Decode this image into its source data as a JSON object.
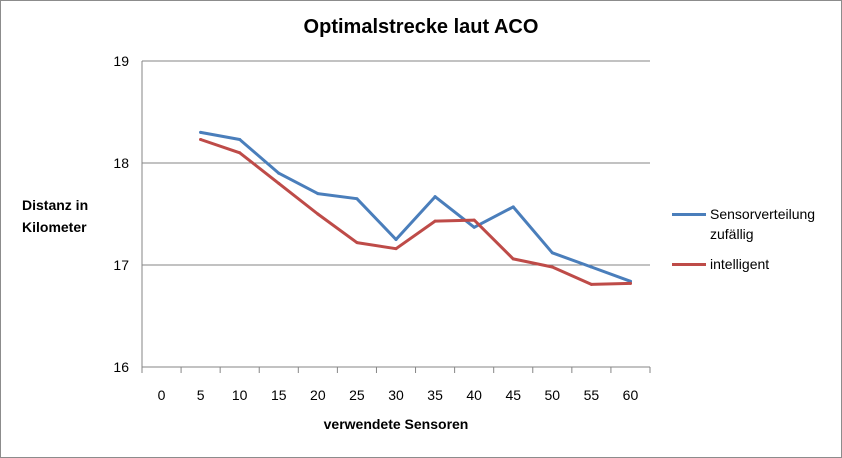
{
  "chart_data": {
    "type": "line",
    "title": "Optimalstrecke laut ACO",
    "xlabel": "verwendete Sensoren",
    "ylabel": "Distanz in Kilometer",
    "categories": [
      "0",
      "5",
      "10",
      "15",
      "20",
      "25",
      "30",
      "35",
      "40",
      "45",
      "50",
      "55",
      "60"
    ],
    "y_ticks": [
      "16",
      "17",
      "18",
      "19"
    ],
    "ylim": [
      16,
      19
    ],
    "grid": "horizontal",
    "legend_position": "right",
    "series": [
      {
        "name": "Sensorverteilung zufällig",
        "color": "#4a7ebb",
        "values": [
          null,
          18.3,
          18.23,
          17.9,
          17.7,
          17.65,
          17.25,
          17.67,
          17.37,
          17.57,
          17.12,
          16.98,
          16.84
        ]
      },
      {
        "name": "intelligent",
        "color": "#be4b48",
        "values": [
          null,
          18.23,
          18.1,
          17.8,
          17.5,
          17.22,
          17.16,
          17.43,
          17.44,
          17.06,
          16.98,
          16.81,
          16.82
        ]
      }
    ]
  }
}
